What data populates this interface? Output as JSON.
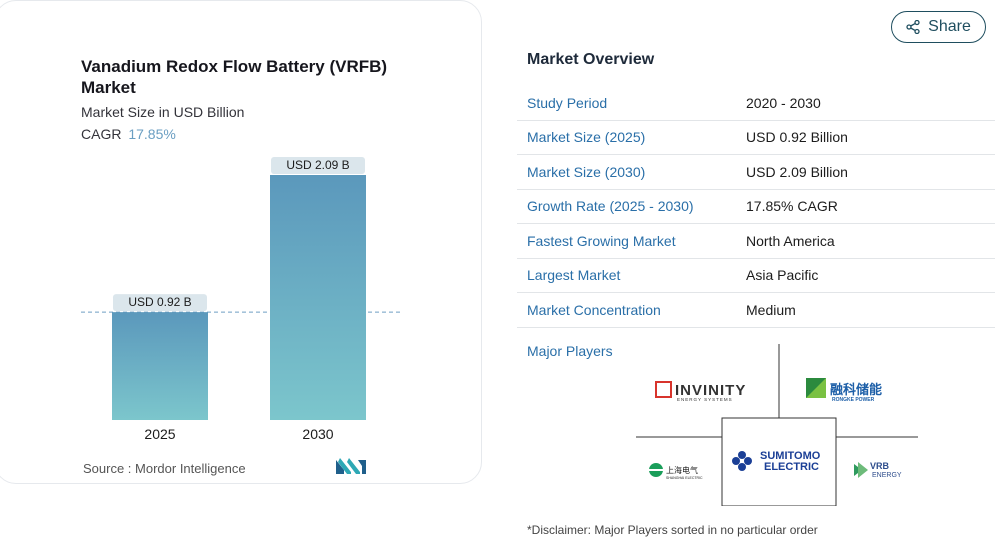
{
  "chart_card": {
    "title": "Vanadium Redox Flow Battery (VRFB) Market",
    "subtitle": "Market Size in USD Billion",
    "cagr_label": "CAGR",
    "cagr_value": "17.85%",
    "source": "Source :  Mordor Intelligence",
    "brand_logo": "mordor-intelligence-logo"
  },
  "chart_data": {
    "type": "bar",
    "categories": [
      "2025",
      "2030"
    ],
    "values": [
      0.92,
      2.09
    ],
    "data_labels": [
      "USD 0.92 B",
      "USD 2.09 B"
    ],
    "ylim": [
      0,
      2.09
    ],
    "grid": false,
    "reference_line": "dashed line at 2025 value",
    "colors": [
      "#5b98bc",
      "#7cc6cc"
    ]
  },
  "share_button": {
    "label": "Share",
    "icon": "share-icon"
  },
  "market_overview": {
    "title": "Market Overview",
    "rows": [
      {
        "label": "Study Period",
        "value": "2020 - 2030"
      },
      {
        "label": "Market Size (2025)",
        "value": "USD 0.92 Billion"
      },
      {
        "label": "Market Size (2030)",
        "value": "USD 2.09 Billion"
      },
      {
        "label": "Growth Rate (2025 - 2030)",
        "value": "17.85% CAGR"
      },
      {
        "label": "Fastest Growing Market",
        "value": "North America"
      },
      {
        "label": "Largest Market",
        "value": "Asia Pacific"
      },
      {
        "label": "Market Concentration",
        "value": "Medium"
      }
    ]
  },
  "major_players": {
    "title": "Major Players",
    "logos": [
      {
        "name": "invinity-logo",
        "text": "INVINITY",
        "sub": "ENERGY SYSTEMS"
      },
      {
        "name": "rongke-power-logo",
        "text": "融科储能",
        "sub": "RONGKE POWER"
      },
      {
        "name": "shanghai-electric-logo",
        "text": "上海电气",
        "sub": "SHANGHAI ELECTRIC"
      },
      {
        "name": "sumitomo-electric-logo",
        "text": "SUMITOMO",
        "sub": "ELECTRIC"
      },
      {
        "name": "vrb-energy-logo",
        "text": "VRB",
        "sub": "ENERGY"
      }
    ]
  },
  "disclaimer": "*Disclaimer: Major Players sorted in no particular order",
  "colors": {
    "accent": "#2a6fa8",
    "bar_top": "#5b98bc",
    "bar_bottom": "#7cc6cc",
    "share_border": "#1f4e5f"
  }
}
